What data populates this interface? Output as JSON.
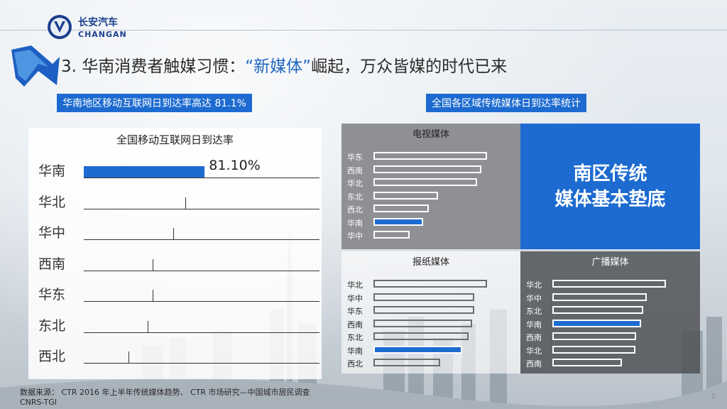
{
  "brand": {
    "cn": "长安汽车",
    "en": "CHANGAN"
  },
  "title": {
    "prefix": "3. 华南消费者触媒习惯：",
    "quote": "“新媒体”",
    "suffix": "崛起，万众皆媒的时代已来"
  },
  "left_heading": "华南地区移动互联网日到达率高达 81.1%",
  "right_heading": "全国各区域传统媒体日到达率统计",
  "chart_data": [
    {
      "type": "bar",
      "title": "全国移动互联网日到达率",
      "categories": [
        "华南",
        "华北",
        "华中",
        "西南",
        "华东",
        "东北",
        "西北"
      ],
      "values": [
        81.1,
        68,
        60,
        46,
        46,
        43,
        30
      ],
      "data_label": "81.10%",
      "highlight": "华南"
    },
    {
      "type": "bar",
      "title": "电视媒体",
      "categories": [
        "华东",
        "西南",
        "华北",
        "东北",
        "西北",
        "华南",
        "华中"
      ],
      "values": [
        100,
        95,
        91,
        57,
        49,
        44,
        32
      ],
      "highlight": "华南"
    },
    {
      "type": "bar",
      "title": "报纸媒体",
      "categories": [
        "华北",
        "华中",
        "华东",
        "西南",
        "东北",
        "华南",
        "西北"
      ],
      "values": [
        100,
        89,
        89,
        87,
        84,
        78,
        59
      ],
      "highlight": "华南"
    },
    {
      "type": "bar",
      "title": "广播媒体",
      "categories": [
        "华北",
        "华中",
        "东北",
        "华南",
        "西南",
        "华北",
        "西南"
      ],
      "values": [
        100,
        83,
        80,
        78,
        74,
        73,
        61
      ],
      "highlight": "华南"
    }
  ],
  "callout": {
    "line1": "南区传统",
    "line2": "媒体基本垫底"
  },
  "footer": {
    "line1": "数据来源： CTR 2016 年上半年传统媒体趋势、 CTR 市场研究—中国城市居民调查",
    "line2": "CNRS-TGI"
  },
  "page_number": "5",
  "colors": {
    "accent": "#1d6bd0",
    "panel_gray": "#8e9094",
    "panel_dark": "#5e6064"
  }
}
